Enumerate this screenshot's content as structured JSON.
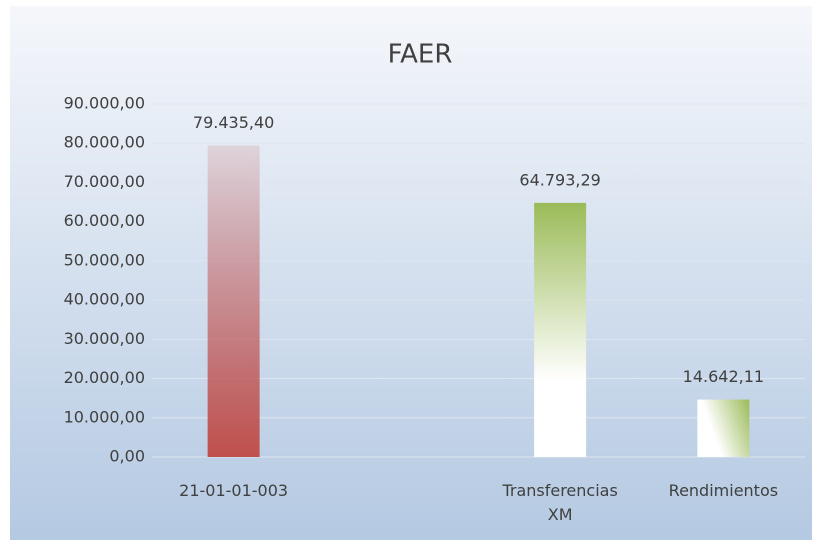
{
  "chart_data": {
    "type": "bar",
    "title": "FAER",
    "categories": [
      "21-01-01-003",
      null,
      "Transferencias XM",
      "Rendimientos"
    ],
    "values": [
      79435.4,
      null,
      64793.29,
      14642.11
    ],
    "value_labels": [
      "79.435,40",
      null,
      "64.793,29",
      "14.642,11"
    ],
    "colors": [
      "#c0504d",
      null,
      "#9bbb59",
      "#9bbb59"
    ],
    "ylim": [
      0,
      90000
    ],
    "yticks": [
      {
        "value": 0,
        "label": "0,00"
      },
      {
        "value": 10000,
        "label": "10.000,00"
      },
      {
        "value": 20000,
        "label": "20.000,00"
      },
      {
        "value": 30000,
        "label": "30.000,00"
      },
      {
        "value": 40000,
        "label": "40.000,00"
      },
      {
        "value": 50000,
        "label": "50.000,00"
      },
      {
        "value": 60000,
        "label": "60.000,00"
      },
      {
        "value": 70000,
        "label": "70.000,00"
      },
      {
        "value": 80000,
        "label": "80.000,00"
      },
      {
        "value": 90000,
        "label": "90.000,00"
      }
    ],
    "grid": true
  }
}
